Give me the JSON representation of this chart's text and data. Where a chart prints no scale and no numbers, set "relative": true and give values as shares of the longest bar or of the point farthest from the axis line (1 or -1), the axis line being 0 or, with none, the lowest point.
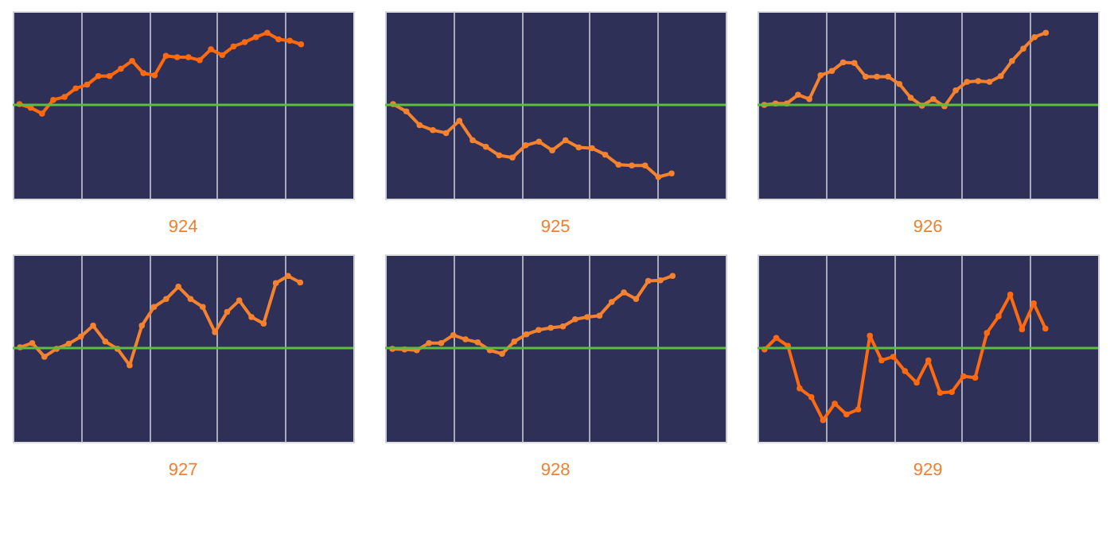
{
  "chart_data": [
    {
      "type": "line",
      "title": "924",
      "relative": true,
      "grid": true,
      "marker": "circle",
      "tick_labels": false,
      "ref_lines": [
        {
          "axis": "y",
          "value": 0,
          "color": "#5cbf3c"
        }
      ],
      "categories": [
        null,
        null,
        null,
        null,
        null,
        null,
        null,
        null,
        null,
        null,
        null,
        null,
        null,
        null,
        null,
        null,
        null,
        null,
        null,
        null,
        null,
        null,
        null,
        null,
        null,
        null
      ],
      "series": [
        {
          "color": "#ff6a10",
          "values": [
            0.01,
            -0.04,
            -0.12,
            0.07,
            0.11,
            0.23,
            0.28,
            0.4,
            0.4,
            0.5,
            0.61,
            0.44,
            0.41,
            0.68,
            0.66,
            0.66,
            0.62,
            0.77,
            0.69,
            0.81,
            0.87,
            0.94,
            1,
            0.91,
            0.89,
            0.84
          ]
        }
      ]
    },
    {
      "type": "line",
      "title": "925",
      "relative": true,
      "grid": true,
      "marker": "circle",
      "tick_labels": false,
      "ref_lines": [
        {
          "axis": "y",
          "value": 0,
          "color": "#5cbf3c"
        }
      ],
      "categories": [
        null,
        null,
        null,
        null,
        null,
        null,
        null,
        null,
        null,
        null,
        null,
        null,
        null,
        null,
        null,
        null,
        null,
        null,
        null,
        null,
        null,
        null
      ],
      "series": [
        {
          "color": "#f5822e",
          "values": [
            0.01,
            -0.09,
            -0.28,
            -0.35,
            -0.39,
            -0.22,
            -0.49,
            -0.58,
            -0.7,
            -0.73,
            -0.56,
            -0.51,
            -0.63,
            -0.49,
            -0.59,
            -0.6,
            -0.69,
            -0.83,
            -0.84,
            -0.84,
            -1,
            -0.95
          ]
        }
      ]
    },
    {
      "type": "line",
      "title": "926",
      "relative": true,
      "grid": true,
      "marker": "circle",
      "tick_labels": false,
      "ref_lines": [
        {
          "axis": "y",
          "value": 0,
          "color": "#5cbf3c"
        }
      ],
      "categories": [
        null,
        null,
        null,
        null,
        null,
        null,
        null,
        null,
        null,
        null,
        null,
        null,
        null,
        null,
        null,
        null,
        null,
        null,
        null,
        null,
        null,
        null,
        null,
        null,
        null,
        null
      ],
      "series": [
        {
          "color": "#f5822e",
          "values": [
            0,
            0.02,
            0.02,
            0.14,
            0.08,
            0.41,
            0.47,
            0.59,
            0.58,
            0.39,
            0.39,
            0.39,
            0.29,
            0.1,
            -0.01,
            0.08,
            -0.02,
            0.2,
            0.32,
            0.33,
            0.32,
            0.4,
            0.61,
            0.78,
            0.94,
            1
          ]
        }
      ]
    },
    {
      "type": "line",
      "title": "927",
      "relative": true,
      "grid": true,
      "marker": "circle",
      "tick_labels": false,
      "ref_lines": [
        {
          "axis": "y",
          "value": 0,
          "color": "#5cbf3c"
        }
      ],
      "categories": [
        null,
        null,
        null,
        null,
        null,
        null,
        null,
        null,
        null,
        null,
        null,
        null,
        null,
        null,
        null,
        null,
        null,
        null,
        null,
        null,
        null,
        null,
        null,
        null
      ],
      "series": [
        {
          "color": "#f5822e",
          "values": [
            0.01,
            0.07,
            -0.12,
            -0.01,
            0.06,
            0.16,
            0.31,
            0.09,
            -0.01,
            -0.24,
            0.31,
            0.57,
            0.68,
            0.85,
            0.68,
            0.57,
            0.22,
            0.5,
            0.66,
            0.43,
            0.34,
            0.9,
            1,
            0.91
          ]
        }
      ]
    },
    {
      "type": "line",
      "title": "928",
      "relative": true,
      "grid": true,
      "marker": "circle",
      "tick_labels": false,
      "ref_lines": [
        {
          "axis": "y",
          "value": 0,
          "color": "#5cbf3c"
        }
      ],
      "categories": [
        null,
        null,
        null,
        null,
        null,
        null,
        null,
        null,
        null,
        null,
        null,
        null,
        null,
        null,
        null,
        null,
        null,
        null,
        null,
        null,
        null,
        null,
        null,
        null
      ],
      "series": [
        {
          "color": "#f5822e",
          "values": [
            -0.01,
            -0.02,
            -0.03,
            0.07,
            0.07,
            0.18,
            0.12,
            0.08,
            -0.03,
            -0.08,
            0.09,
            0.19,
            0.25,
            0.28,
            0.3,
            0.4,
            0.43,
            0.45,
            0.64,
            0.77,
            0.68,
            0.93,
            0.94,
            1
          ]
        }
      ]
    },
    {
      "type": "line",
      "title": "929",
      "relative": true,
      "grid": true,
      "marker": "circle",
      "tick_labels": false,
      "ref_lines": [
        {
          "axis": "y",
          "value": 0,
          "color": "#5cbf3c"
        }
      ],
      "categories": [
        null,
        null,
        null,
        null,
        null,
        null,
        null,
        null,
        null,
        null,
        null,
        null,
        null,
        null,
        null,
        null,
        null,
        null,
        null,
        null,
        null,
        null,
        null,
        null,
        null
      ],
      "series": [
        {
          "color": "#ff6a10",
          "values": [
            -0.02,
            0.14,
            0.03,
            -0.56,
            -0.68,
            -1,
            -0.77,
            -0.92,
            -0.85,
            0.17,
            -0.17,
            -0.12,
            -0.32,
            -0.48,
            -0.17,
            -0.62,
            -0.61,
            -0.39,
            -0.41,
            0.21,
            0.44,
            0.74,
            0.26,
            0.62,
            0.27
          ]
        }
      ]
    }
  ]
}
